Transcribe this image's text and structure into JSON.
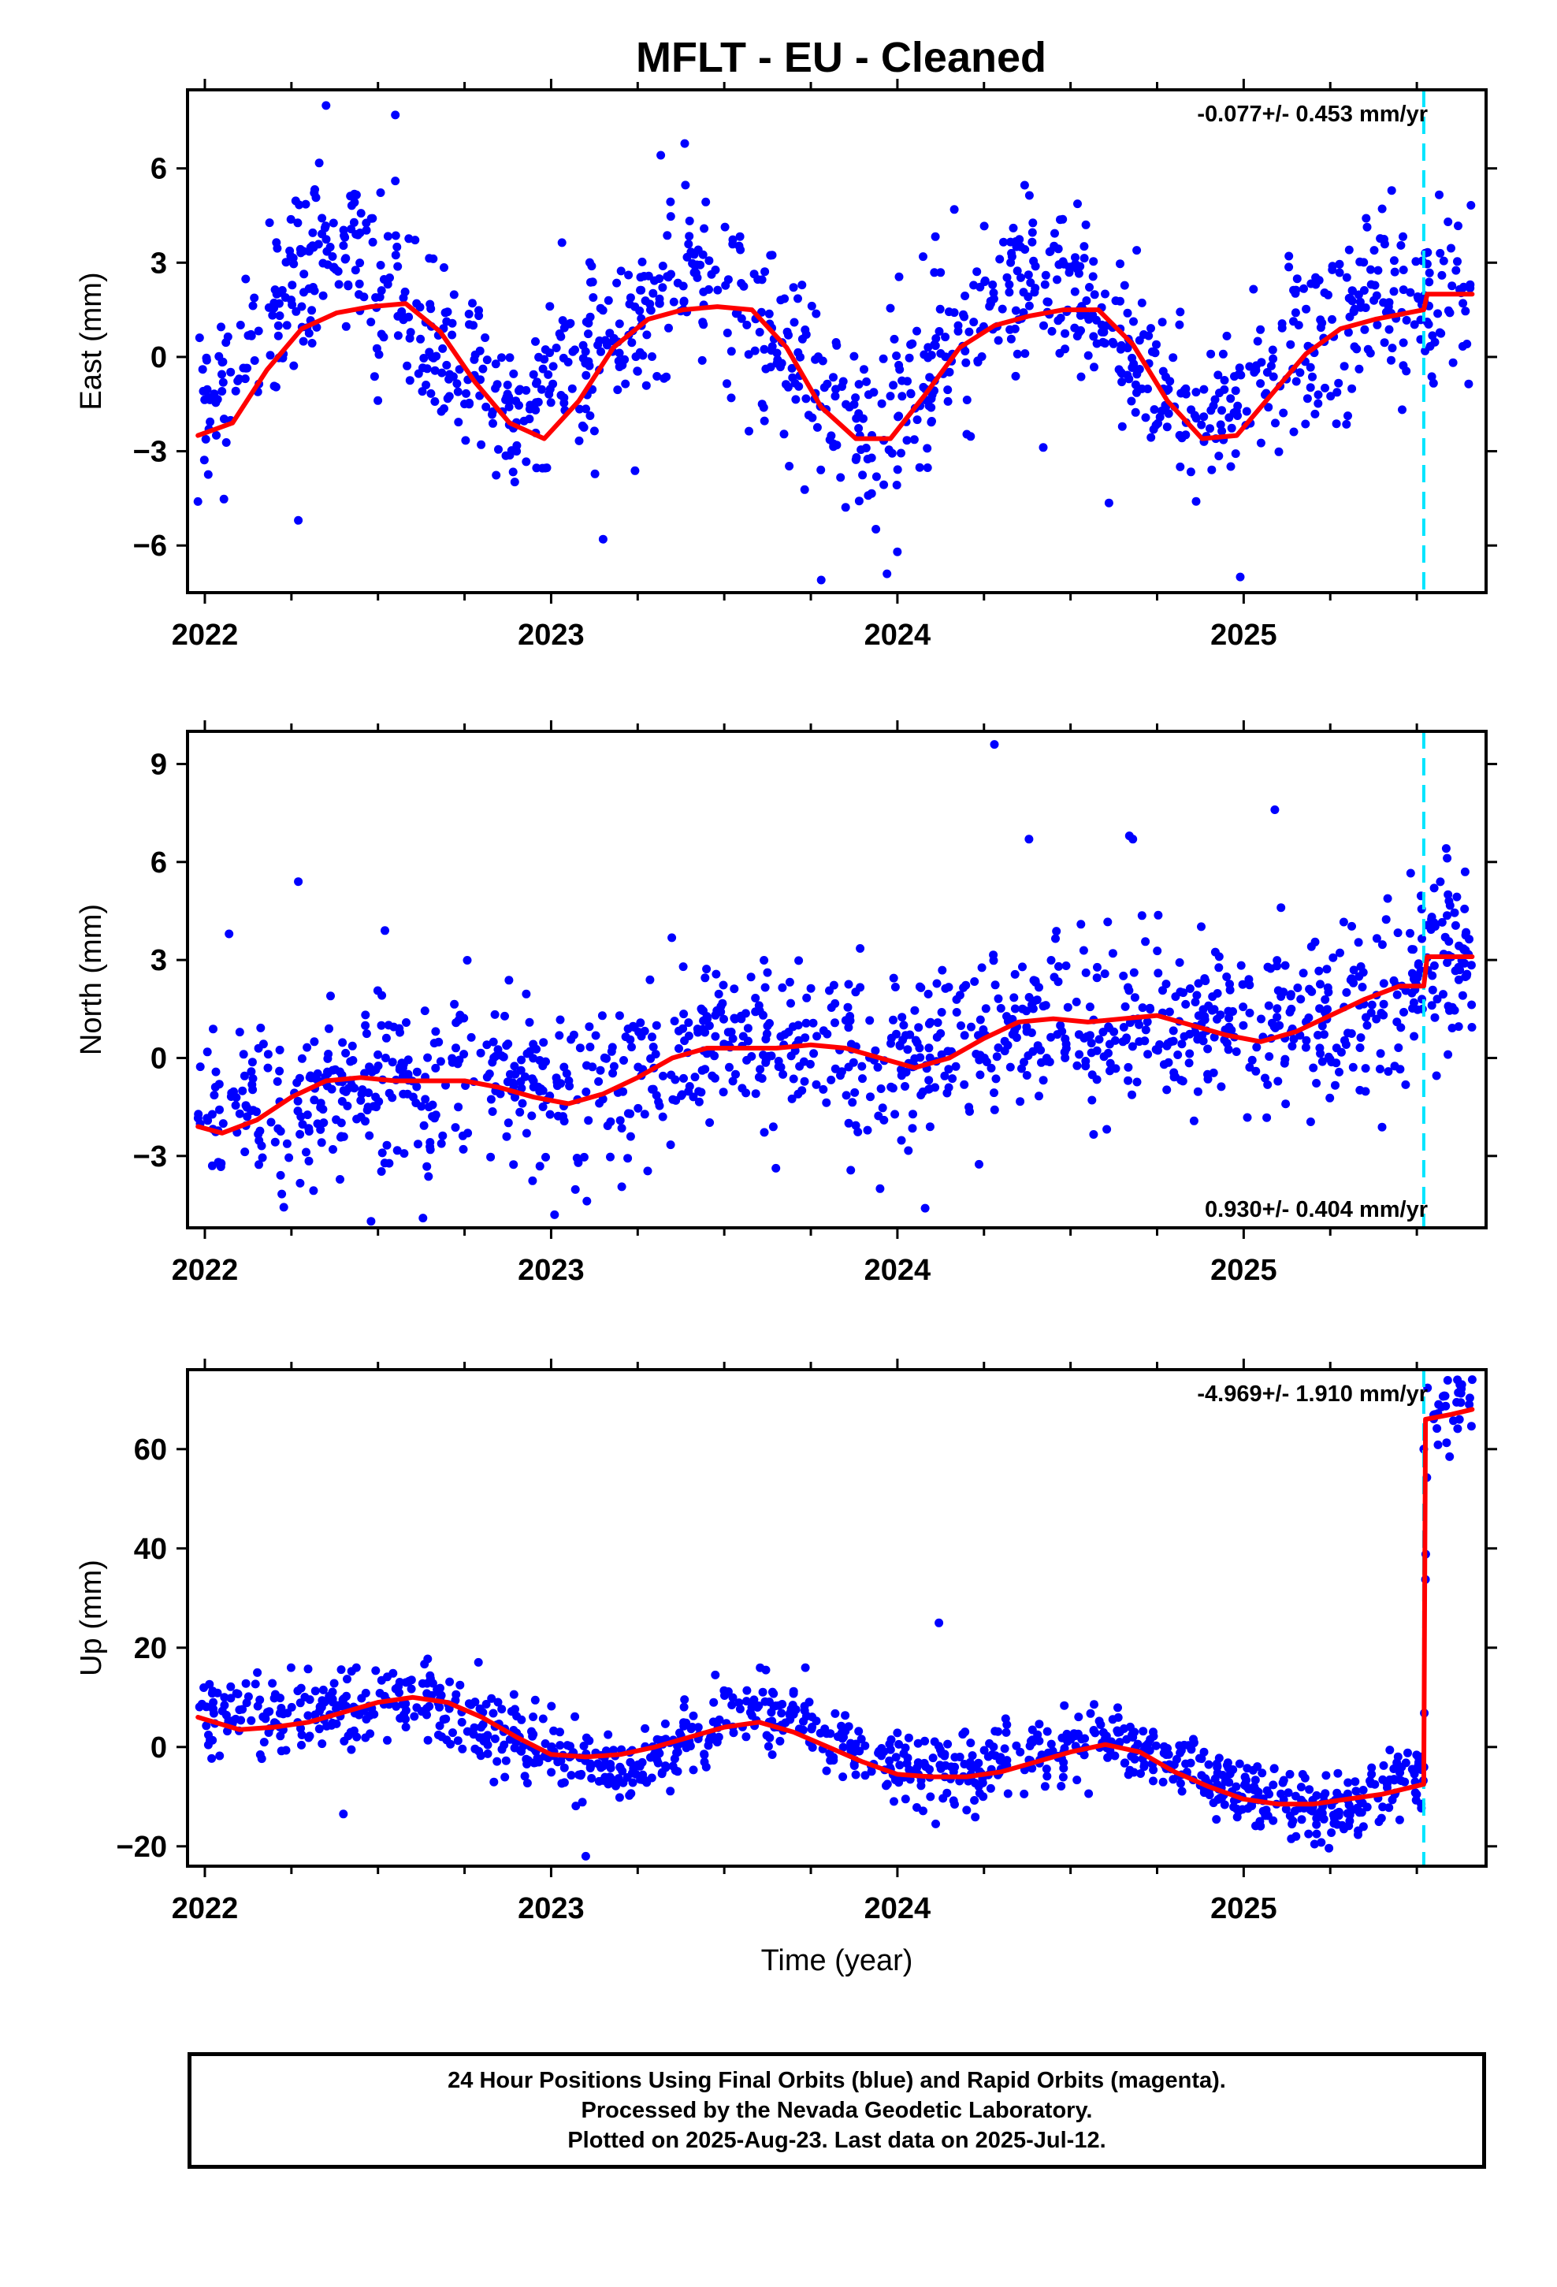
{
  "title": "MFLT  - EU - Cleaned",
  "colors": {
    "points": "#0000ff",
    "model": "#ff0000",
    "event_marker": "#00e5ff",
    "frame": "#000000"
  },
  "footer": {
    "line1": "24 Hour Positions Using Final Orbits (blue) and Rapid Orbits (magenta).",
    "line2": "Processed by the Nevada Geodetic Laboratory.",
    "line3": "Plotted on 2025-Aug-23. Last data on 2025-Jul-12."
  },
  "chart_data": [
    {
      "type": "scatter",
      "ylabel": "East (mm)",
      "xlabel": "",
      "rate_label": "-0.077+/- 0.453 mm/yr",
      "rate_position": "top-right",
      "xlim": [
        2021.95,
        2025.7
      ],
      "ylim": [
        -7.5,
        8.5
      ],
      "x_ticks": [
        2022,
        2023,
        2024,
        2025
      ],
      "y_ticks": [
        6,
        3,
        0,
        -3,
        -6
      ],
      "y_tick_labels": [
        "6",
        "3",
        "0",
        "−3",
        "−6"
      ],
      "event_marker_x": 2025.52,
      "model": {
        "x": [
          2021.98,
          2022.08,
          2022.18,
          2022.28,
          2022.38,
          2022.48,
          2022.58,
          2022.68,
          2022.78,
          2022.88,
          2022.98,
          2023.08,
          2023.18,
          2023.28,
          2023.38,
          2023.48,
          2023.58,
          2023.68,
          2023.78,
          2023.88,
          2023.98,
          2024.08,
          2024.18,
          2024.28,
          2024.38,
          2024.48,
          2024.58,
          2024.68,
          2024.78,
          2024.88,
          2024.98,
          2025.08,
          2025.18,
          2025.28,
          2025.38,
          2025.52,
          2025.53,
          2025.6,
          2025.66
        ],
        "y": [
          -2.5,
          -2.1,
          -0.4,
          0.9,
          1.4,
          1.6,
          1.7,
          0.8,
          -0.8,
          -2.1,
          -2.6,
          -1.4,
          0.3,
          1.2,
          1.5,
          1.6,
          1.5,
          0.3,
          -1.6,
          -2.6,
          -2.6,
          -1.2,
          0.3,
          1.0,
          1.3,
          1.5,
          1.5,
          0.4,
          -1.4,
          -2.6,
          -2.5,
          -1.2,
          0.1,
          0.9,
          1.2,
          1.5,
          2.0,
          2.0,
          2.0
        ]
      },
      "trend": {
        "x": [
          2021.98,
          2022.4,
          2022.9,
          2023.4,
          2023.9,
          2024.4,
          2024.9,
          2025.4,
          2025.52,
          2025.53,
          2025.66
        ],
        "y": [
          -1.8,
          3.8,
          -1.9,
          3.2,
          -2.5,
          3.0,
          -2.2,
          2.2,
          1.5,
          2.0,
          2.0
        ]
      },
      "noise": 1.35,
      "n_points": 1150,
      "outliers": {
        "x": [
          2022.35,
          2022.55,
          2022.55,
          2021.98,
          2022.27,
          2023.15,
          2023.78,
          2023.97,
          2024.0,
          2024.99,
          2025.59
        ],
        "y": [
          8.0,
          7.7,
          5.6,
          -4.6,
          -5.2,
          -5.8,
          -7.1,
          -6.9,
          -6.2,
          -7.0,
          4.3
        ]
      }
    },
    {
      "type": "scatter",
      "ylabel": "North (mm)",
      "xlabel": "",
      "rate_label": "0.930+/- 0.404 mm/yr",
      "rate_position": "bottom-right",
      "xlim": [
        2021.95,
        2025.7
      ],
      "ylim": [
        -5.2,
        10.0
      ],
      "x_ticks": [
        2022,
        2023,
        2024,
        2025
      ],
      "y_ticks": [
        9,
        6,
        3,
        0,
        -3
      ],
      "y_tick_labels": [
        "9",
        "6",
        "3",
        "0",
        "−3"
      ],
      "event_marker_x": 2025.52,
      "model": {
        "x": [
          2021.98,
          2022.05,
          2022.15,
          2022.25,
          2022.35,
          2022.45,
          2022.55,
          2022.65,
          2022.75,
          2022.85,
          2022.95,
          2023.05,
          2023.15,
          2023.25,
          2023.35,
          2023.45,
          2023.55,
          2023.65,
          2023.75,
          2023.85,
          2023.95,
          2024.05,
          2024.15,
          2024.25,
          2024.35,
          2024.45,
          2024.55,
          2024.65,
          2024.75,
          2024.85,
          2024.95,
          2025.05,
          2025.15,
          2025.25,
          2025.35,
          2025.45,
          2025.52,
          2025.53,
          2025.6,
          2025.66
        ],
        "y": [
          -2.1,
          -2.3,
          -1.9,
          -1.2,
          -0.7,
          -0.6,
          -0.7,
          -0.7,
          -0.7,
          -0.9,
          -1.2,
          -1.4,
          -1.1,
          -0.6,
          0.0,
          0.3,
          0.3,
          0.3,
          0.4,
          0.3,
          0.0,
          -0.3,
          0.0,
          0.6,
          1.1,
          1.2,
          1.1,
          1.2,
          1.3,
          1.0,
          0.7,
          0.5,
          0.8,
          1.3,
          1.8,
          2.2,
          2.2,
          3.1,
          3.1,
          3.1
        ]
      },
      "trend": {
        "x": [
          2021.98,
          2022.5,
          2023.0,
          2023.5,
          2024.0,
          2024.5,
          2025.0,
          2025.52,
          2025.53,
          2025.66
        ],
        "y": [
          -2.1,
          -0.6,
          -1.2,
          0.5,
          0.1,
          1.2,
          0.6,
          2.2,
          3.1,
          3.1
        ]
      },
      "noise": 1.3,
      "n_points": 1150,
      "outliers": {
        "x": [
          2022.27,
          2022.52,
          2022.07,
          2024.28,
          2024.38,
          2024.67,
          2024.68,
          2025.09,
          2025.55,
          2025.59,
          2023.95,
          2024.08,
          2022.48,
          2022.63,
          2023.01
        ],
        "y": [
          5.4,
          3.9,
          3.8,
          9.6,
          6.7,
          6.8,
          6.7,
          7.6,
          5.2,
          5.0,
          -4.0,
          -4.6,
          -5.0,
          -4.9,
          -4.8
        ]
      }
    },
    {
      "type": "scatter",
      "ylabel": "Up (mm)",
      "xlabel": "Time (year)",
      "rate_label": "-4.969+/- 1.910 mm/yr",
      "rate_position": "top-right",
      "xlim": [
        2021.95,
        2025.7
      ],
      "ylim": [
        -24,
        76
      ],
      "x_ticks": [
        2022,
        2023,
        2024,
        2025
      ],
      "y_ticks": [
        60,
        40,
        20,
        0,
        -20
      ],
      "y_tick_labels": [
        "60",
        "40",
        "20",
        "0",
        "−20"
      ],
      "event_marker_x": 2025.52,
      "model": {
        "x": [
          2021.98,
          2022.1,
          2022.2,
          2022.3,
          2022.4,
          2022.5,
          2022.6,
          2022.7,
          2022.8,
          2022.9,
          2023.0,
          2023.1,
          2023.2,
          2023.3,
          2023.4,
          2023.5,
          2023.6,
          2023.7,
          2023.8,
          2023.9,
          2024.0,
          2024.1,
          2024.2,
          2024.3,
          2024.4,
          2024.5,
          2024.6,
          2024.7,
          2024.8,
          2024.9,
          2025.0,
          2025.1,
          2025.2,
          2025.3,
          2025.4,
          2025.52,
          2025.525,
          2025.6,
          2025.66
        ],
        "y": [
          6,
          3.5,
          4.0,
          5.0,
          7.0,
          9.0,
          10.0,
          9.0,
          6.0,
          2.0,
          -1.5,
          -2.0,
          -1.5,
          0.0,
          2.0,
          4.0,
          5.0,
          3.0,
          0.0,
          -3.0,
          -5.5,
          -6.0,
          -6.0,
          -5.0,
          -3.0,
          -1.0,
          0.5,
          -1.0,
          -5.0,
          -8.0,
          -10.5,
          -11.5,
          -11.5,
          -10.5,
          -9.5,
          -7.5,
          66,
          67,
          68
        ]
      },
      "trend": {
        "x": [
          2021.98,
          2022.2,
          2022.6,
          2023.0,
          2023.2,
          2023.6,
          2024.0,
          2024.2,
          2024.6,
          2025.0,
          2025.2,
          2025.52,
          2025.53,
          2025.66
        ],
        "y": [
          7,
          6,
          10,
          -1,
          -6,
          9,
          -4,
          -5,
          2,
          -10,
          -13,
          -6,
          67,
          70
        ]
      },
      "noise": 3.6,
      "n_points": 1100,
      "outliers": {
        "x": [
          2024.12,
          2022.4,
          2023.1,
          2025.63,
          2025.66,
          2025.52
        ],
        "y": [
          25,
          -13.5,
          -22,
          73,
          74,
          60
        ]
      }
    }
  ]
}
